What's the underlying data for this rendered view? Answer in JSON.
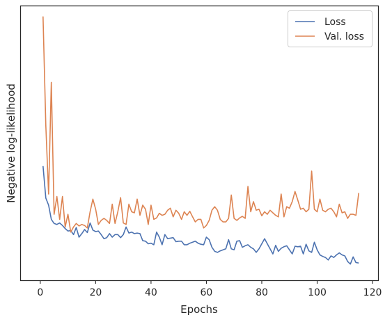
{
  "chart_data": {
    "type": "line",
    "xlabel": "Epochs",
    "ylabel": "Negative log-likelihood",
    "xlim": [
      -7,
      122
    ],
    "xticks": [
      0,
      20,
      40,
      60,
      80,
      100,
      120
    ],
    "y_tick_labels_shown": false,
    "grid": false,
    "legend": "top-right",
    "series": [
      {
        "name": "Loss",
        "color": "#4c72b0",
        "x": [
          1,
          2,
          3,
          4,
          5,
          6,
          7,
          8,
          9,
          10,
          11,
          12,
          13,
          14,
          15,
          16,
          17,
          18,
          19,
          20,
          21,
          22,
          23,
          24,
          25,
          26,
          27,
          28,
          29,
          30,
          31,
          32,
          33,
          34,
          35,
          36,
          37,
          38,
          39,
          40,
          41,
          42,
          43,
          44,
          45,
          46,
          47,
          48,
          49,
          50,
          51,
          52,
          53,
          54,
          55,
          56,
          57,
          58,
          59,
          60,
          61,
          62,
          63,
          64,
          65,
          66,
          67,
          68,
          69,
          70,
          71,
          72,
          73,
          74,
          75,
          76,
          77,
          78,
          79,
          80,
          81,
          82,
          83,
          84,
          85,
          86,
          87,
          88,
          89,
          90,
          91,
          92,
          93,
          94,
          95,
          96,
          97,
          98,
          99,
          100,
          101,
          102,
          103,
          104,
          105,
          106,
          107,
          108,
          109,
          110,
          111,
          112,
          113,
          114,
          115
        ],
        "values": [
          2.25,
          1.62,
          1.48,
          1.2,
          1.12,
          1.1,
          1.13,
          1.08,
          1.02,
          0.97,
          0.98,
          0.9,
          1.04,
          0.85,
          0.92,
          1.0,
          0.94,
          1.13,
          0.99,
          0.96,
          0.97,
          0.9,
          0.82,
          0.84,
          0.92,
          0.85,
          0.9,
          0.9,
          0.84,
          0.9,
          1.05,
          0.93,
          0.95,
          0.92,
          0.93,
          0.92,
          0.78,
          0.77,
          0.72,
          0.73,
          0.7,
          0.95,
          0.85,
          0.7,
          0.9,
          0.82,
          0.83,
          0.84,
          0.76,
          0.77,
          0.77,
          0.7,
          0.7,
          0.73,
          0.75,
          0.77,
          0.73,
          0.71,
          0.7,
          0.85,
          0.8,
          0.65,
          0.57,
          0.55,
          0.58,
          0.6,
          0.62,
          0.8,
          0.62,
          0.6,
          0.77,
          0.78,
          0.65,
          0.68,
          0.7,
          0.65,
          0.62,
          0.55,
          0.62,
          0.72,
          0.82,
          0.72,
          0.62,
          0.52,
          0.69,
          0.57,
          0.63,
          0.66,
          0.68,
          0.6,
          0.52,
          0.67,
          0.66,
          0.67,
          0.52,
          0.71,
          0.58,
          0.55,
          0.75,
          0.6,
          0.5,
          0.47,
          0.45,
          0.4,
          0.48,
          0.45,
          0.5,
          0.54,
          0.5,
          0.48,
          0.37,
          0.32,
          0.46,
          0.35,
          0.34
        ]
      },
      {
        "name": "Val. loss",
        "color": "#dd8452",
        "x": [
          1,
          2,
          3,
          4,
          5,
          6,
          7,
          8,
          9,
          10,
          11,
          12,
          13,
          14,
          15,
          16,
          17,
          18,
          19,
          20,
          21,
          22,
          23,
          24,
          25,
          26,
          27,
          28,
          29,
          30,
          31,
          32,
          33,
          34,
          35,
          36,
          37,
          38,
          39,
          40,
          41,
          42,
          43,
          44,
          45,
          46,
          47,
          48,
          49,
          50,
          51,
          52,
          53,
          54,
          55,
          56,
          57,
          58,
          59,
          60,
          61,
          62,
          63,
          64,
          65,
          66,
          67,
          68,
          69,
          70,
          71,
          72,
          73,
          74,
          75,
          76,
          77,
          78,
          79,
          80,
          81,
          82,
          83,
          84,
          85,
          86,
          87,
          88,
          89,
          90,
          91,
          92,
          93,
          94,
          95,
          96,
          97,
          98,
          99,
          100,
          101,
          102,
          103,
          104,
          105,
          106,
          107,
          108,
          109,
          110,
          111,
          112,
          113,
          114,
          115
        ],
        "values": [
          5.2,
          3.05,
          1.7,
          3.9,
          1.3,
          1.65,
          1.2,
          1.65,
          1.05,
          1.3,
          0.95,
          1.05,
          1.12,
          1.07,
          1.1,
          1.08,
          1.03,
          1.35,
          1.6,
          1.4,
          1.1,
          1.18,
          1.22,
          1.18,
          1.12,
          1.5,
          1.12,
          1.35,
          1.63,
          1.13,
          1.1,
          1.5,
          1.35,
          1.33,
          1.6,
          1.28,
          1.48,
          1.4,
          1.1,
          1.48,
          1.2,
          1.23,
          1.32,
          1.28,
          1.3,
          1.38,
          1.42,
          1.25,
          1.38,
          1.32,
          1.2,
          1.35,
          1.28,
          1.36,
          1.25,
          1.15,
          1.2,
          1.2,
          1.03,
          1.08,
          1.18,
          1.38,
          1.45,
          1.38,
          1.2,
          1.15,
          1.15,
          1.22,
          1.68,
          1.22,
          1.18,
          1.23,
          1.26,
          1.22,
          1.85,
          1.35,
          1.55,
          1.38,
          1.4,
          1.27,
          1.35,
          1.3,
          1.38,
          1.33,
          1.28,
          1.25,
          1.7,
          1.25,
          1.45,
          1.42,
          1.55,
          1.75,
          1.58,
          1.4,
          1.42,
          1.35,
          1.4,
          2.15,
          1.4,
          1.35,
          1.6,
          1.38,
          1.35,
          1.4,
          1.42,
          1.35,
          1.25,
          1.5,
          1.33,
          1.35,
          1.22,
          1.3,
          1.3,
          1.28,
          1.72
        ]
      }
    ]
  }
}
